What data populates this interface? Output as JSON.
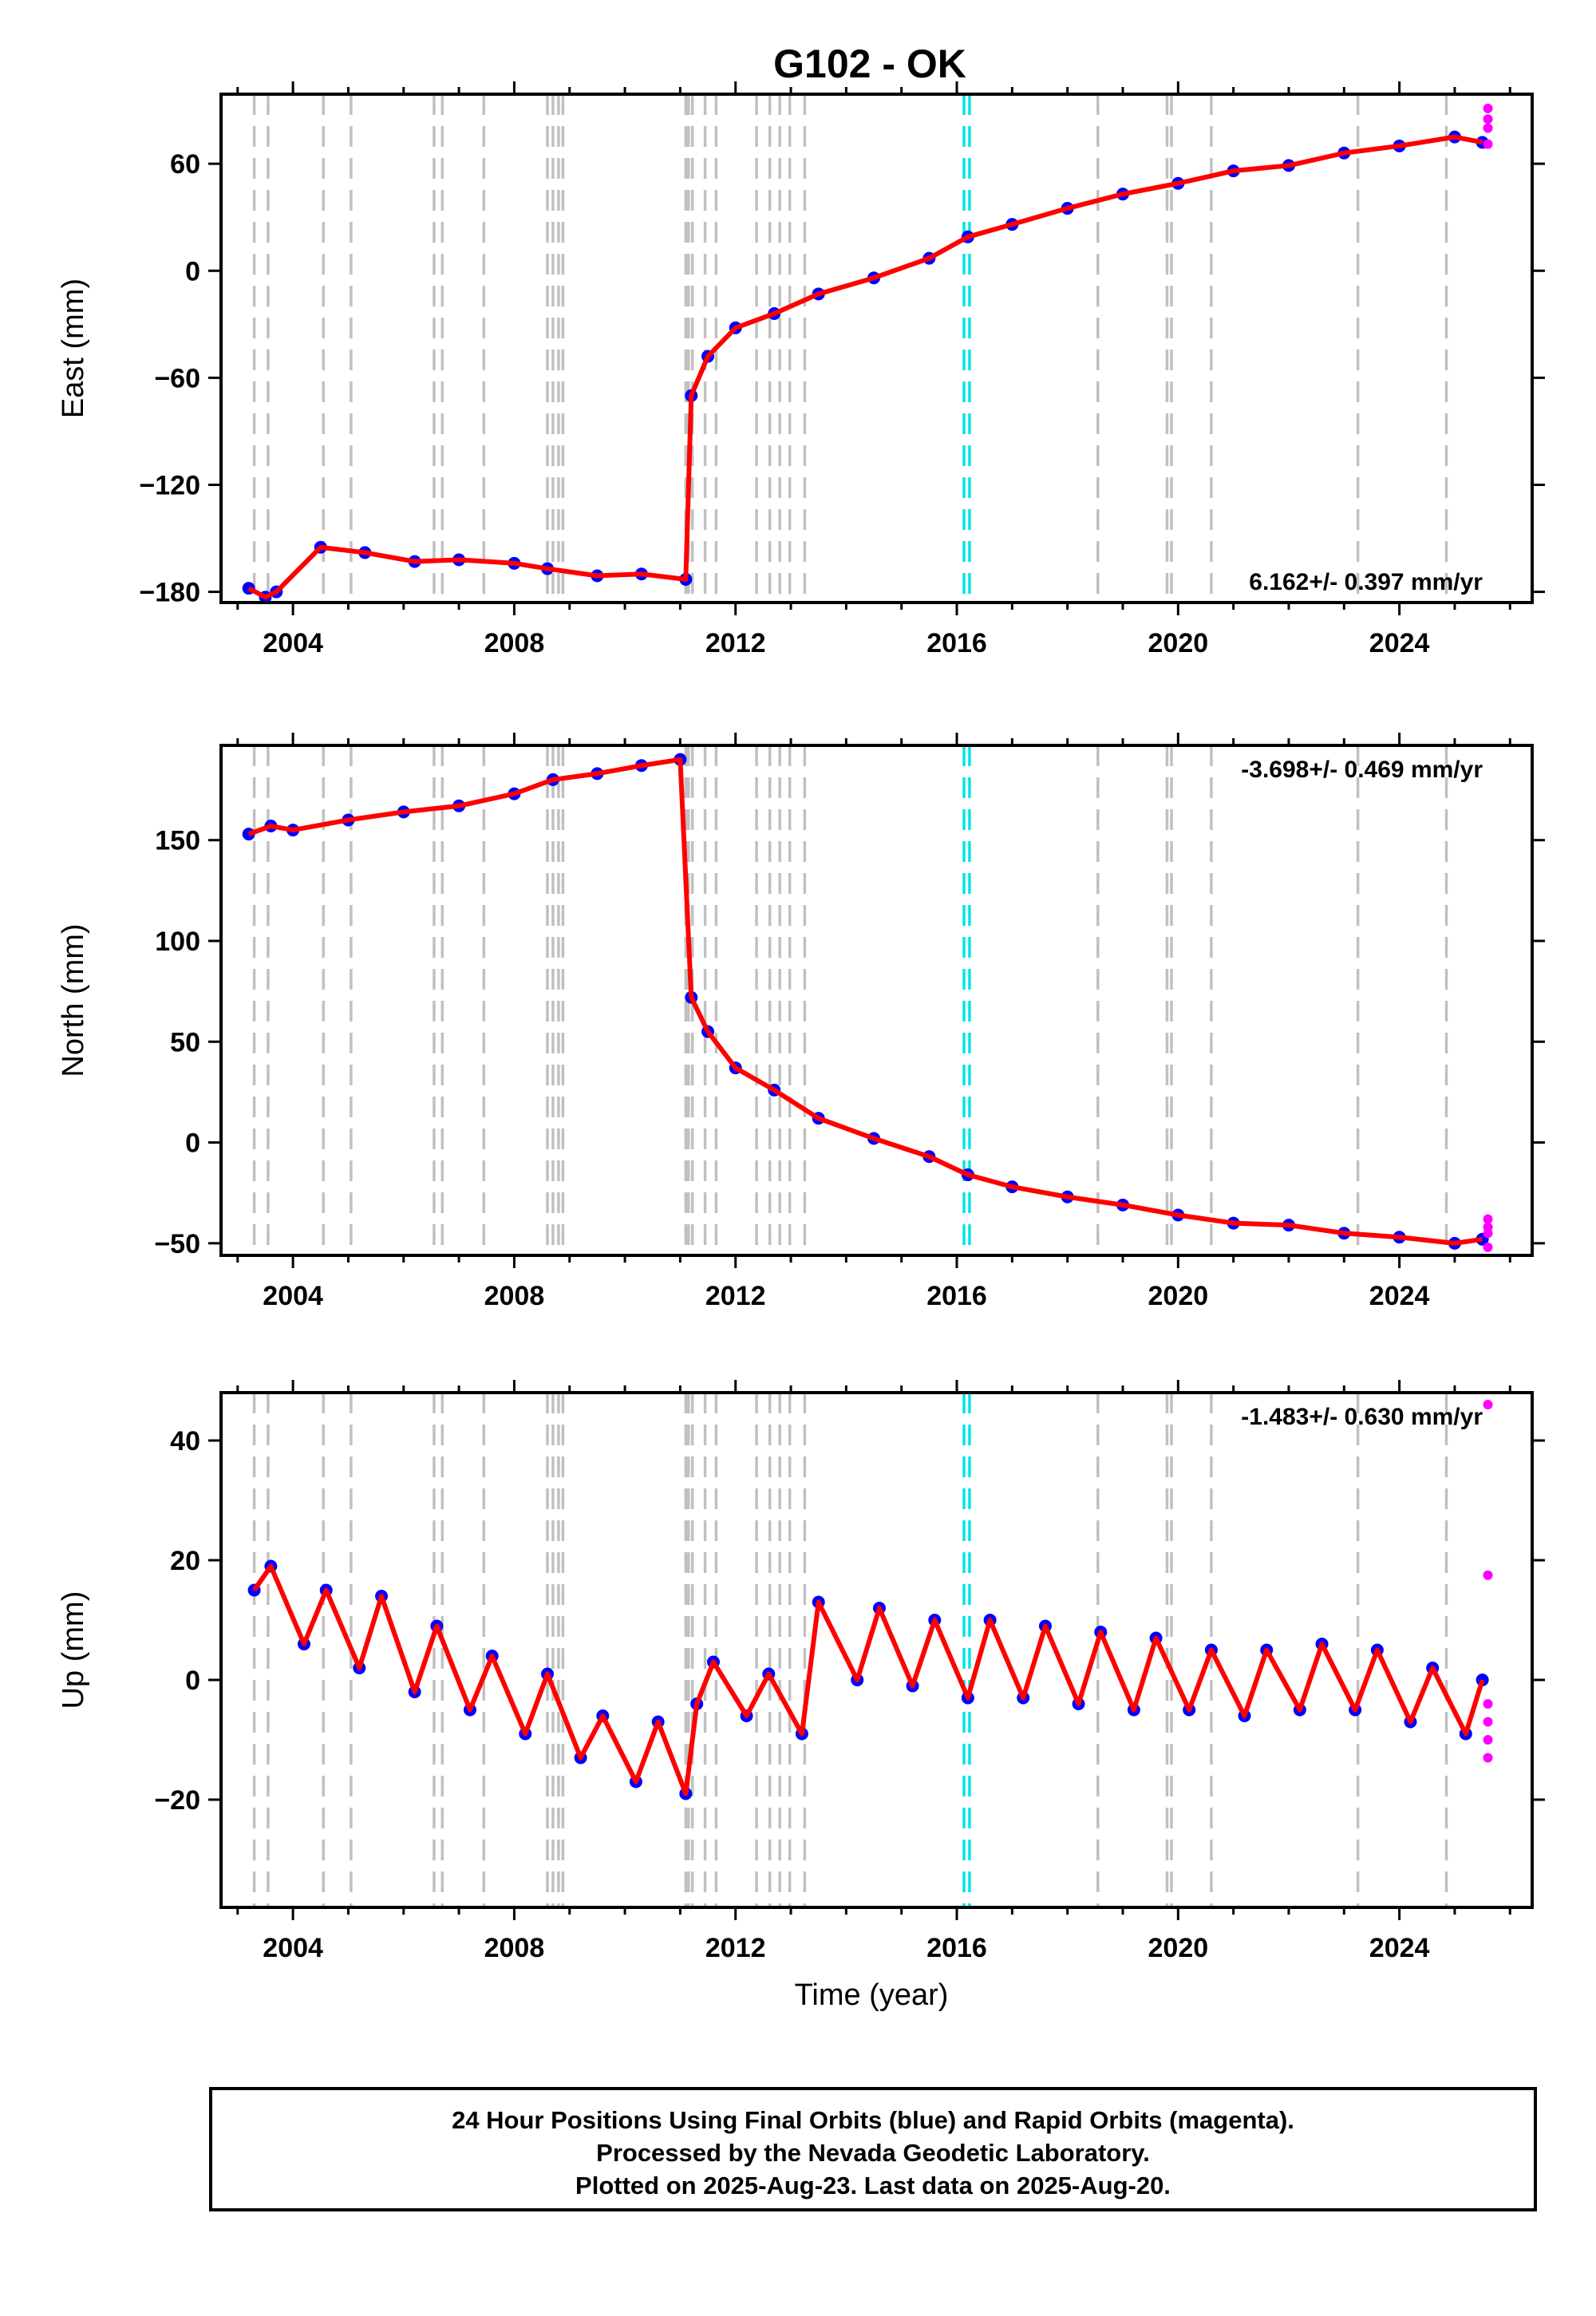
{
  "title": "G102 - OK",
  "xlabel": "Time (year)",
  "caption": [
    "24 Hour Positions Using Final Orbits (blue) and Rapid Orbits (magenta).",
    "Processed by the Nevada Geodetic Laboratory.",
    "Plotted on 2025-Aug-23. Last data on 2025-Aug-20."
  ],
  "colors": {
    "final_orbits": "#0000ff",
    "rapid_orbits": "#ff00ff",
    "model": "#ff0000",
    "step_line": "#c0c0c0",
    "antenna_line": "#00e5e5"
  },
  "chart_data": [
    {
      "type": "scatter",
      "component": "east",
      "ylabel": "East (mm)",
      "rate": "6.162+/- 0.397 mm/yr",
      "xlim": [
        2002.7,
        2026.4
      ],
      "ylim": [
        -186,
        99
      ],
      "xticks": [
        2004,
        2008,
        2012,
        2016,
        2020,
        2024
      ],
      "yticks": [
        -180,
        -120,
        -60,
        0,
        60
      ],
      "series": [
        {
          "name": "Final Orbits (blue)",
          "x": [
            2003.2,
            2003.5,
            2003.7,
            2004.5,
            2005.3,
            2006.2,
            2007.0,
            2008.0,
            2008.6,
            2009.5,
            2010.3,
            2011.1,
            2011.2,
            2011.5,
            2012.0,
            2012.7,
            2013.5,
            2014.5,
            2015.5,
            2016.2,
            2017.0,
            2018.0,
            2019.0,
            2020.0,
            2021.0,
            2022.0,
            2023.0,
            2024.0,
            2025.0,
            2025.5
          ],
          "y": [
            -178,
            -183,
            -180,
            -155,
            -158,
            -163,
            -162,
            -164,
            -167,
            -171,
            -170,
            -173,
            -70,
            -48,
            -32,
            -24,
            -13,
            -4,
            7,
            19,
            26,
            35,
            43,
            49,
            56,
            59,
            66,
            70,
            75,
            72
          ]
        },
        {
          "name": "Rapid Orbits (magenta)",
          "x": [
            2025.6,
            2025.6,
            2025.6,
            2025.6
          ],
          "y": [
            91,
            85,
            80,
            71
          ]
        }
      ]
    },
    {
      "type": "scatter",
      "component": "north",
      "ylabel": "North (mm)",
      "rate": "-3.698+/- 0.469 mm/yr",
      "xlim": [
        2002.7,
        2026.4
      ],
      "ylim": [
        -56,
        197
      ],
      "xticks": [
        2004,
        2008,
        2012,
        2016,
        2020,
        2024
      ],
      "yticks": [
        -50,
        0,
        50,
        100,
        150
      ],
      "series": [
        {
          "name": "Final Orbits (blue)",
          "x": [
            2003.2,
            2003.6,
            2004.0,
            2005.0,
            2006.0,
            2007.0,
            2008.0,
            2008.7,
            2009.5,
            2010.3,
            2011.0,
            2011.2,
            2011.5,
            2012.0,
            2012.7,
            2013.5,
            2014.5,
            2015.5,
            2016.2,
            2017.0,
            2018.0,
            2019.0,
            2020.0,
            2021.0,
            2022.0,
            2023.0,
            2024.0,
            2025.0,
            2025.5
          ],
          "y": [
            153,
            157,
            155,
            160,
            164,
            167,
            173,
            180,
            183,
            187,
            190,
            72,
            55,
            37,
            26,
            12,
            2,
            -7,
            -16,
            -22,
            -27,
            -31,
            -36,
            -40,
            -41,
            -45,
            -47,
            -50,
            -48
          ]
        },
        {
          "name": "Rapid Orbits (magenta)",
          "x": [
            2025.6,
            2025.6,
            2025.6,
            2025.6
          ],
          "y": [
            -38,
            -42,
            -45,
            -52
          ]
        }
      ]
    },
    {
      "type": "scatter",
      "component": "up",
      "ylabel": "Up (mm)",
      "rate": "-1.483+/- 0.630 mm/yr",
      "xlim": [
        2002.7,
        2026.4
      ],
      "ylim": [
        -38,
        48
      ],
      "xticks": [
        2004,
        2008,
        2012,
        2016,
        2020,
        2024
      ],
      "yticks": [
        -20,
        0,
        20,
        40
      ],
      "series": [
        {
          "name": "Final Orbits (blue)",
          "x": [
            2003.3,
            2003.6,
            2004.2,
            2004.6,
            2005.2,
            2005.6,
            2006.2,
            2006.6,
            2007.2,
            2007.6,
            2008.2,
            2008.6,
            2009.2,
            2009.6,
            2010.2,
            2010.6,
            2011.1,
            2011.3,
            2011.6,
            2012.2,
            2012.6,
            2013.2,
            2013.5,
            2014.2,
            2014.6,
            2015.2,
            2015.6,
            2016.2,
            2016.6,
            2017.2,
            2017.6,
            2018.2,
            2018.6,
            2019.2,
            2019.6,
            2020.2,
            2020.6,
            2021.2,
            2021.6,
            2022.2,
            2022.6,
            2023.2,
            2023.6,
            2024.2,
            2024.6,
            2025.2,
            2025.5
          ],
          "y": [
            15,
            19,
            6,
            15,
            2,
            14,
            -2,
            9,
            -5,
            4,
            -9,
            1,
            -13,
            -6,
            -17,
            -7,
            -19,
            -4,
            3,
            -6,
            1,
            -9,
            13,
            0,
            12,
            -1,
            10,
            -3,
            10,
            -3,
            9,
            -4,
            8,
            -5,
            7,
            -5,
            5,
            -6,
            5,
            -5,
            6,
            -5,
            5,
            -7,
            2,
            -9,
            0
          ]
        },
        {
          "name": "Rapid Orbits (magenta)",
          "x": [
            2025.6,
            2025.6,
            2025.6,
            2025.6,
            2025.6,
            2025.6
          ],
          "y": [
            46,
            17.5,
            -4,
            -7,
            -10,
            -13
          ]
        }
      ]
    }
  ]
}
